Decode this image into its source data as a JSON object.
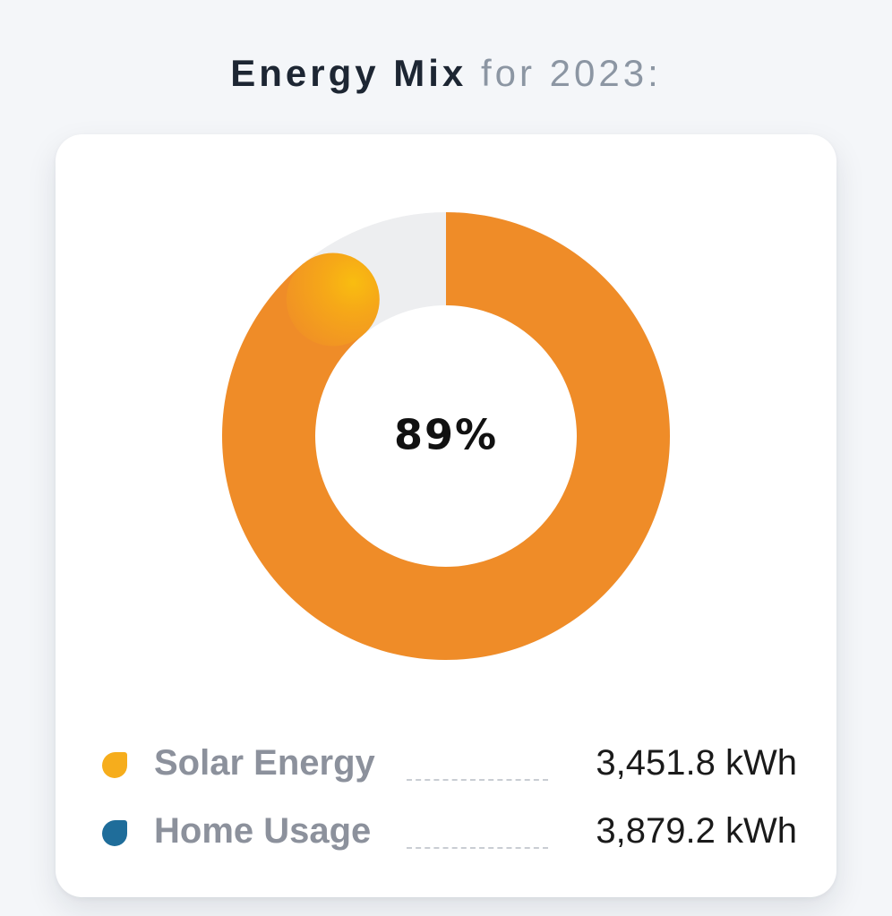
{
  "title": {
    "strong": "Energy Mix",
    "light": "for 2023:"
  },
  "chart_data": {
    "type": "pie",
    "style": "donut",
    "center_label": "89%",
    "percent": 89,
    "colors": {
      "fill": "#ef8c28",
      "track": "#edeef0",
      "cap_light": "#f7b416"
    },
    "legend": [
      {
        "label": "Solar Energy",
        "value": "3,451.8 kWh",
        "color": "#f6ad1c",
        "icon": "droplet-icon"
      },
      {
        "label": "Home Usage",
        "value": "3,879.2 kWh",
        "color": "#1f6d9a",
        "icon": "droplet-icon"
      }
    ]
  }
}
